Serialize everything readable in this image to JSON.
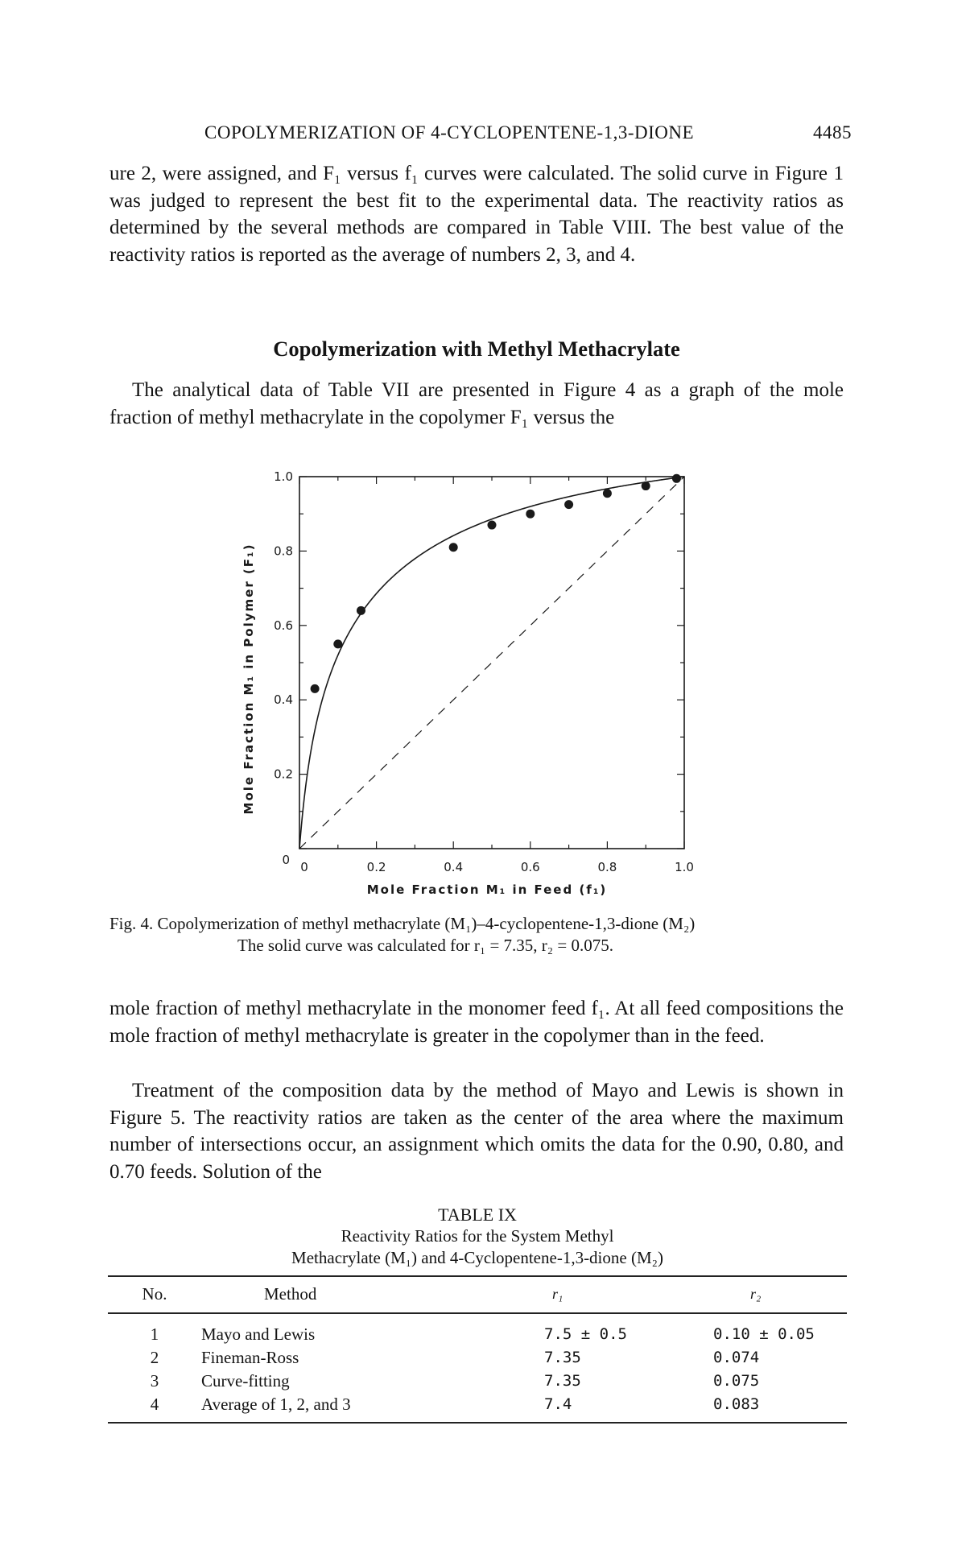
{
  "header": {
    "running_title": "COPOLYMERIZATION OF 4-CYCLOPENTENE-1,3-DIONE",
    "page_number": "4485"
  },
  "body": {
    "para1": "ure 2, were assigned, and F₁ versus f₁ curves were calculated. The solid curve in Figure 1 was judged to represent the best fit to the experimental data. The reactivity ratios as determined by the several methods are compared in Table VIII. The best value of the reactivity ratios is reported as the average of numbers 2, 3, and 4.",
    "section_heading": "Copolymerization with Methyl Methacrylate",
    "para2": "The analytical data of Table VII are presented in Figure 4 as a graph of the mole fraction of methyl methacrylate in the copolymer F₁ versus the",
    "para3": "mole fraction of methyl methacrylate in the monomer feed f₁. At all feed compositions the mole fraction of methyl methacrylate is greater in the copolymer than in the feed.",
    "para4": "Treatment of the composition data by the method of Mayo and Lewis is shown in Figure 5. The reactivity ratios are taken as the center of the area where the maximum number of intersections occur, an assignment which omits the data for the 0.90, 0.80, and 0.70 feeds. Solution of the"
  },
  "figure": {
    "caption_line1": "Fig. 4. Copolymerization of methyl methacrylate (M₁)–4-cyclopentene-1,3-dione (M₂)",
    "caption_line2": "The solid curve was calculated for r₁ = 7.35, r₂ = 0.075."
  },
  "chart_data": {
    "type": "scatter",
    "xlabel": "Mole Fraction M₁ in Feed (f₁)",
    "ylabel": "Mole Fraction M₁ in Polymer (F₁)",
    "xlim": [
      0,
      1.0
    ],
    "ylim": [
      0,
      1.0
    ],
    "x_ticks": [
      "0",
      "0.2",
      "0.4",
      "0.6",
      "0.8",
      "1.0"
    ],
    "y_ticks": [
      "0",
      "0.2",
      "0.4",
      "0.6",
      "0.8",
      "1.0"
    ],
    "points": [
      {
        "x": 0.04,
        "y": 0.43
      },
      {
        "x": 0.1,
        "y": 0.55
      },
      {
        "x": 0.16,
        "y": 0.64
      },
      {
        "x": 0.4,
        "y": 0.81
      },
      {
        "x": 0.5,
        "y": 0.87
      },
      {
        "x": 0.6,
        "y": 0.9
      },
      {
        "x": 0.7,
        "y": 0.925
      },
      {
        "x": 0.8,
        "y": 0.955
      },
      {
        "x": 0.9,
        "y": 0.975
      },
      {
        "x": 0.98,
        "y": 0.995
      }
    ],
    "fit_curve": {
      "r1": 7.35,
      "r2": 0.075,
      "style": "solid"
    },
    "reference_line": {
      "style": "dashed",
      "from": [
        0,
        0
      ],
      "to": [
        1,
        1
      ]
    },
    "grid": false
  },
  "table": {
    "label": "TABLE IX",
    "title_line1": "Reactivity Ratios for the System Methyl",
    "title_line2": "Methacrylate (M₁) and 4-Cyclopentene-1,3-dione (M₂)",
    "columns": [
      "No.",
      "Method",
      "r₁",
      "r₂"
    ],
    "rows": [
      {
        "no": "1",
        "method": "Mayo and Lewis",
        "r1": "7.5 ± 0.5",
        "r2": "0.10 ± 0.05"
      },
      {
        "no": "2",
        "method": "Fineman-Ross",
        "r1": "7.35",
        "r2": "0.074"
      },
      {
        "no": "3",
        "method": "Curve-fitting",
        "r1": "7.35",
        "r2": "0.075"
      },
      {
        "no": "4",
        "method": "Average of 1, 2, and 3",
        "r1": "7.4",
        "r2": "0.083"
      }
    ]
  }
}
